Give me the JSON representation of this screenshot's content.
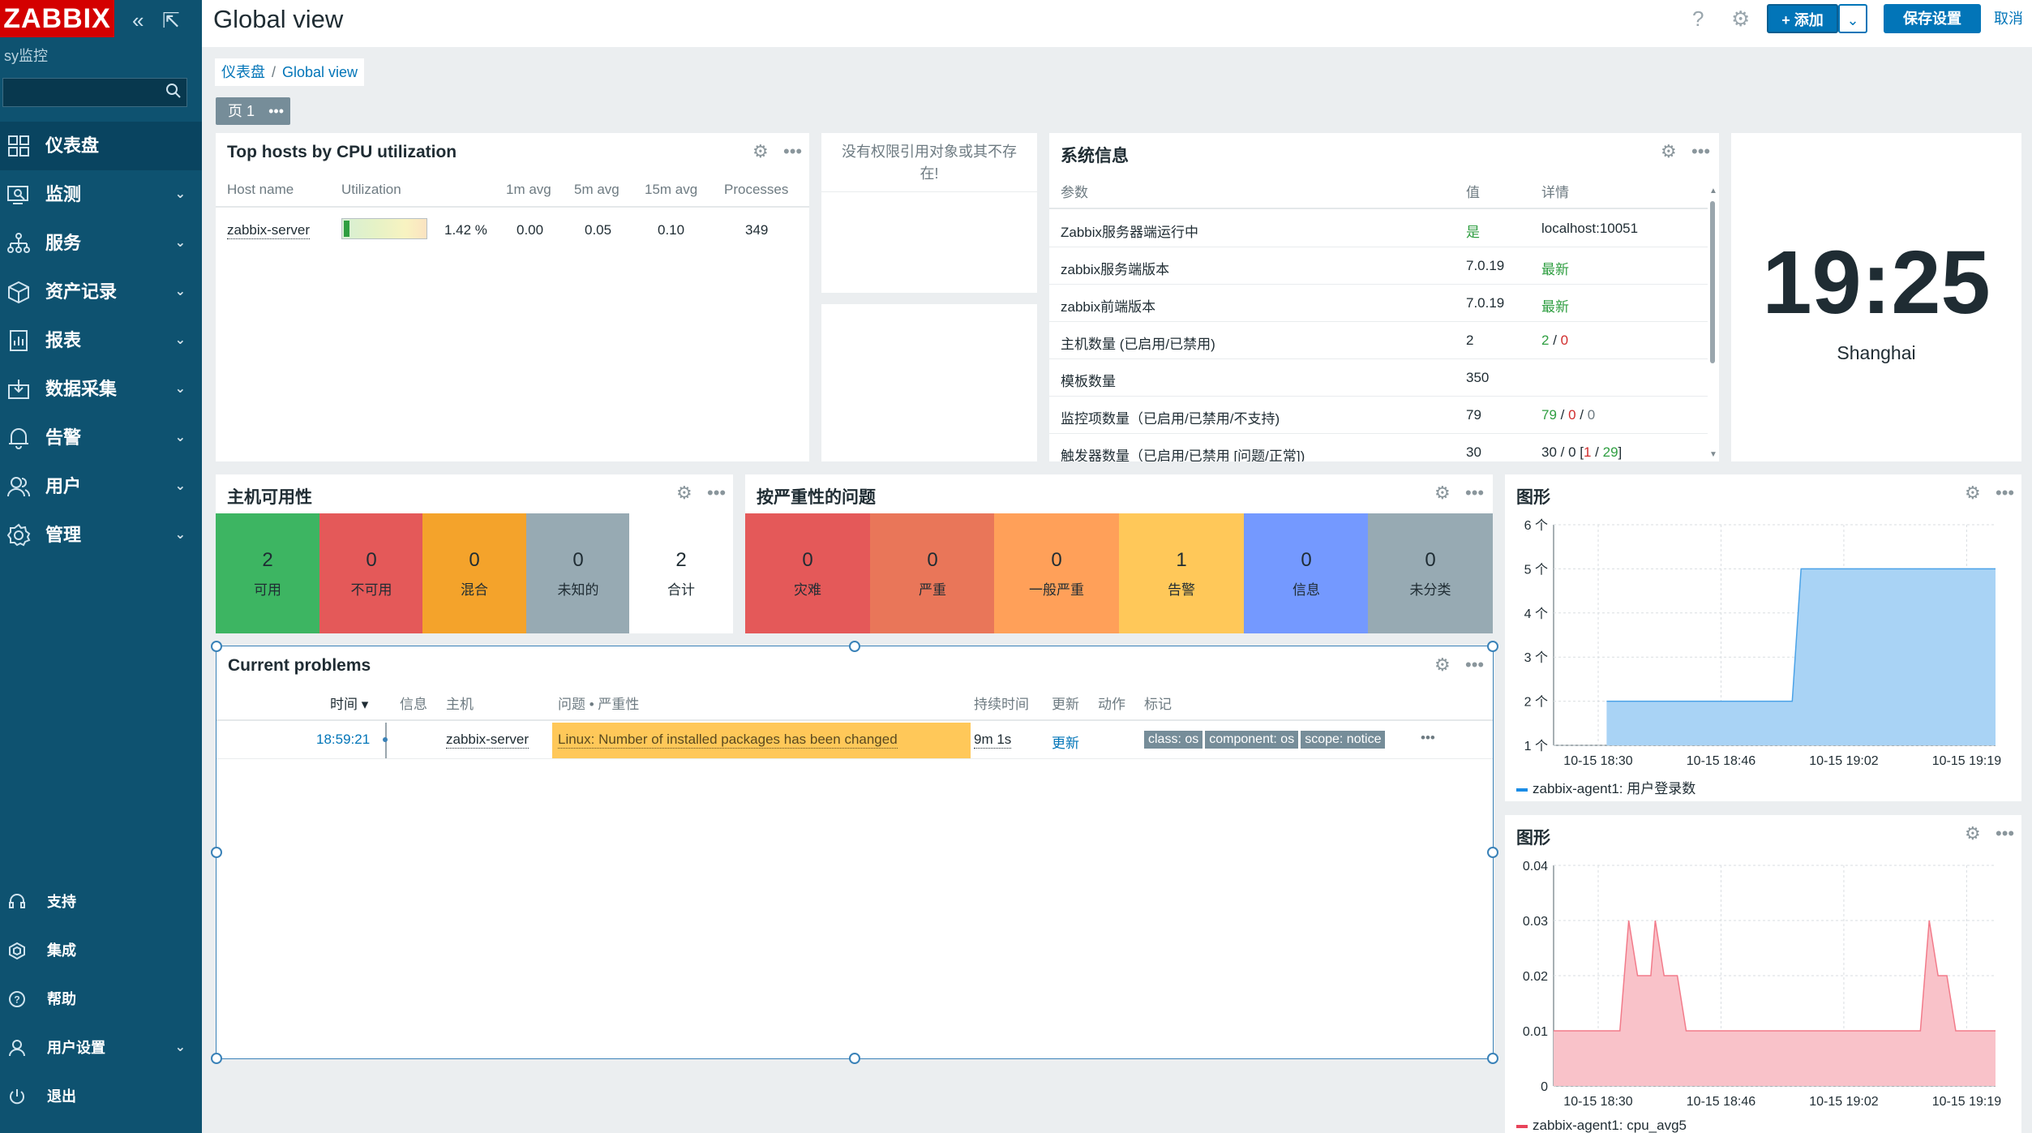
{
  "sidebar": {
    "logo": "ZABBIX",
    "server_name": "sy监控",
    "search_placeholder": "",
    "menu": [
      {
        "label": "仪表盘",
        "active": true,
        "icon": "dashboard-icon"
      },
      {
        "label": "监测",
        "icon": "monitoring-icon"
      },
      {
        "label": "服务",
        "icon": "services-icon"
      },
      {
        "label": "资产记录",
        "icon": "inventory-icon"
      },
      {
        "label": "报表",
        "icon": "reports-icon"
      },
      {
        "label": "数据采集",
        "icon": "data-collection-icon"
      },
      {
        "label": "告警",
        "icon": "alerts-icon"
      },
      {
        "label": "用户",
        "icon": "users-icon"
      },
      {
        "label": "管理",
        "icon": "administration-icon"
      }
    ],
    "footer": [
      {
        "label": "支持",
        "icon": "support-icon"
      },
      {
        "label": "集成",
        "icon": "integrations-icon"
      },
      {
        "label": "帮助",
        "icon": "help-icon"
      },
      {
        "label": "用户设置",
        "icon": "user-settings-icon"
      },
      {
        "label": "退出",
        "icon": "signout-icon"
      }
    ]
  },
  "header": {
    "title": "Global view",
    "help": "?",
    "add_label": "+ 添加",
    "save_label": "保存设置",
    "cancel_label": "取消"
  },
  "breadcrumb": {
    "root": "仪表盘",
    "current": "Global view"
  },
  "page_tab": {
    "label": "页 1",
    "more": "•••"
  },
  "top_hosts": {
    "title": "Top hosts by CPU utilization",
    "columns": [
      "Host name",
      "Utilization",
      "1m avg",
      "5m avg",
      "15m avg",
      "Processes"
    ],
    "rows": [
      {
        "host": "zabbix-server",
        "util_text": "1.42 %",
        "util_fraction": 0.0142,
        "avg1": "0.00",
        "avg5": "0.05",
        "avg15": "0.10",
        "processes": "349"
      }
    ]
  },
  "no_perm": {
    "message": "没有权限引用对象或其不存在!"
  },
  "sysinfo": {
    "title": "系统信息",
    "columns": [
      "参数",
      "值",
      "详情"
    ],
    "rows": [
      {
        "param": "Zabbix服务器端运行中",
        "value": "是",
        "details": "localhost:10051"
      },
      {
        "param": "zabbix服务端版本",
        "value": "7.0.19",
        "details": "最新"
      },
      {
        "param": "zabbix前端版本",
        "value": "7.0.19",
        "details": "最新"
      },
      {
        "param": "主机数量 (已启用/已禁用)",
        "value": "2",
        "d1": "2",
        "d2": "0"
      },
      {
        "param": "模板数量",
        "value": "350",
        "details": ""
      },
      {
        "param": "监控项数量（已启用/已禁用/不支持)",
        "value": "79",
        "d1": "79",
        "d2": "0",
        "d3": "0"
      },
      {
        "param": "触发器数量（已启用/已禁用 [问题/正常])",
        "value": "30",
        "d_pre": "30 / 0 [",
        "d1": "1",
        "d_mid": " / ",
        "d2": "29",
        "d_post": "]"
      }
    ]
  },
  "clock": {
    "time": "19:25",
    "zone": "Shanghai"
  },
  "host_avail": {
    "title": "主机可用性",
    "tiles": [
      {
        "count": "2",
        "label": "可用",
        "color": "#3db562"
      },
      {
        "count": "0",
        "label": "不可用",
        "color": "#e45959"
      },
      {
        "count": "0",
        "label": "混合",
        "color": "#f4a32b"
      },
      {
        "count": "0",
        "label": "未知的",
        "color": "#97aab3"
      },
      {
        "count": "2",
        "label": "合计",
        "color": "#ffffff"
      }
    ]
  },
  "severity": {
    "title": "按严重性的问题",
    "tiles": [
      {
        "count": "0",
        "label": "灾难",
        "color": "#e45959"
      },
      {
        "count": "0",
        "label": "严重",
        "color": "#e97659"
      },
      {
        "count": "0",
        "label": "一般严重",
        "color": "#ffa059"
      },
      {
        "count": "1",
        "label": "告警",
        "color": "#ffc859"
      },
      {
        "count": "0",
        "label": "信息",
        "color": "#7499ff"
      },
      {
        "count": "0",
        "label": "未分类",
        "color": "#97aab3"
      }
    ]
  },
  "problems": {
    "title": "Current problems",
    "columns": [
      "时间 ▾",
      "信息",
      "主机",
      "问题 • 严重性",
      "持续时间",
      "更新",
      "动作",
      "标记"
    ],
    "rows": [
      {
        "time": "18:59:21",
        "host": "zabbix-server",
        "problem": "Linux: Number of installed packages has been changed",
        "duration": "9m 1s",
        "update": "更新",
        "tags": [
          "class: os",
          "component: os",
          "scope: notice"
        ],
        "more": "•••"
      }
    ]
  },
  "graph1": {
    "title": "图形",
    "chart_data": {
      "type": "area",
      "x": [
        "10-15 18:30",
        "10-15 18:46",
        "10-15 19:02",
        "10-15 19:19"
      ],
      "yticks": [
        "1 个",
        "2 个",
        "3 个",
        "4 个",
        "5 个",
        "6 个"
      ],
      "ylim": [
        1,
        6
      ],
      "series": [
        {
          "name": "zabbix-agent1: 用户登录数",
          "color": "#4ba3e8",
          "points": [
            [
              0.12,
              2
            ],
            [
              0.54,
              2
            ],
            [
              0.56,
              5
            ],
            [
              1.0,
              5
            ]
          ]
        }
      ],
      "legend": "bottom-left"
    }
  },
  "graph2": {
    "title": "图形",
    "chart_data": {
      "type": "area",
      "x": [
        "10-15 18:30",
        "10-15 18:46",
        "10-15 19:02",
        "10-15 19:19"
      ],
      "yticks": [
        "0",
        "0.01",
        "0.02",
        "0.03",
        "0.04"
      ],
      "ylim": [
        0,
        0.04
      ],
      "series": [
        {
          "name": "zabbix-agent1: cpu_avg5",
          "color": "#f27b8a",
          "points": [
            [
              0.0,
              0.01
            ],
            [
              0.15,
              0.01
            ],
            [
              0.17,
              0.03
            ],
            [
              0.19,
              0.02
            ],
            [
              0.21,
              0.02
            ],
            [
              0.22,
              0.02
            ],
            [
              0.23,
              0.03
            ],
            [
              0.25,
              0.02
            ],
            [
              0.28,
              0.02
            ],
            [
              0.3,
              0.01
            ],
            [
              0.83,
              0.01
            ],
            [
              0.85,
              0.03
            ],
            [
              0.87,
              0.02
            ],
            [
              0.89,
              0.02
            ],
            [
              0.91,
              0.01
            ],
            [
              1.0,
              0.01
            ]
          ]
        }
      ],
      "legend": "bottom-left"
    }
  }
}
